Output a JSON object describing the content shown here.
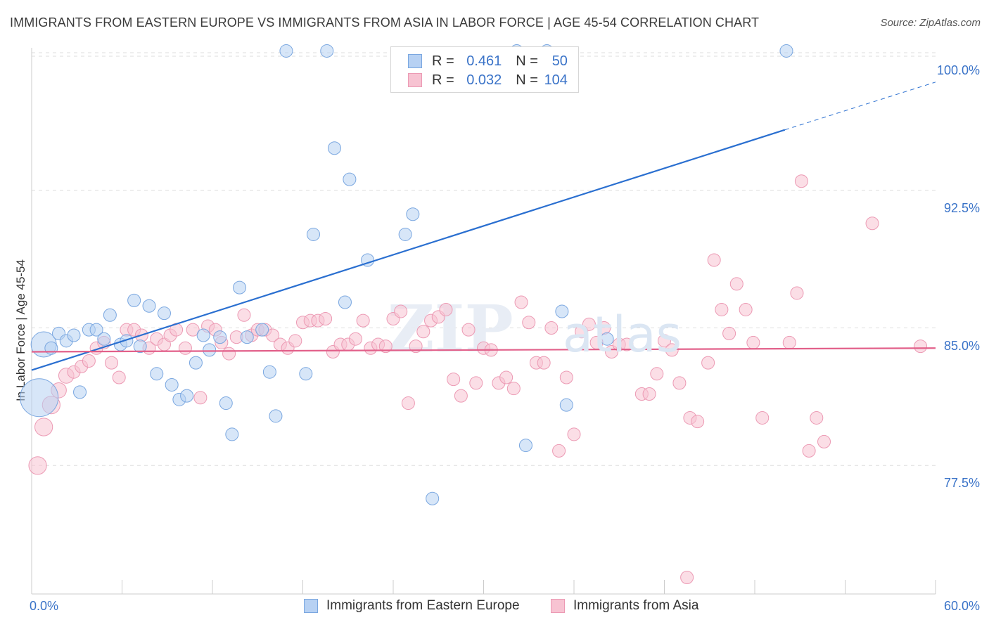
{
  "title": "IMMIGRANTS FROM EASTERN EUROPE VS IMMIGRANTS FROM ASIA IN LABOR FORCE | AGE 45-54 CORRELATION CHART",
  "source": "Source: ZipAtlas.com",
  "watermark": "ZIPatlas",
  "legend_top": {
    "rows": [
      {
        "r_label": "R =",
        "r_value": "0.461",
        "n_label": "N =",
        "n_value": "50"
      },
      {
        "r_label": "R =",
        "r_value": "0.032",
        "n_label": "N =",
        "n_value": "104"
      }
    ]
  },
  "colors": {
    "blue_fill": "#b7d1f3",
    "blue_stroke": "#7aa7e0",
    "blue_line": "#2a6fd0",
    "pink_fill": "#f7c3d2",
    "pink_stroke": "#ec9ab4",
    "pink_line": "#e2608a",
    "axis_label": "#3a73c8",
    "grid": "#dddddd"
  },
  "chart_data": {
    "type": "scatter",
    "title": "IMMIGRANTS FROM EASTERN EUROPE VS IMMIGRANTS FROM ASIA IN LABOR FORCE | AGE 45-54 CORRELATION CHART",
    "xlabel": "",
    "ylabel": "In Labor Force | Age 45-54",
    "xlim": [
      0,
      60
    ],
    "ylim": [
      70.5,
      100.5
    ],
    "x_tick_labels": [
      "0.0%",
      "60.0%"
    ],
    "y_ticks": [
      77.5,
      85.0,
      92.5,
      100.0
    ],
    "y_tick_labels": [
      "77.5%",
      "85.0%",
      "92.5%",
      "100.0%"
    ],
    "grid": true,
    "legend": [
      "Immigrants from Eastern Europe",
      "Immigrants from Asia"
    ],
    "series": [
      {
        "name": "Immigrants from Eastern Europe",
        "color": "blue",
        "trend": {
          "x0": 0,
          "y0": 82.7,
          "x1": 50,
          "y1": 95.8,
          "dashed_to_x": 60,
          "dashed_to_y": 98.4
        },
        "points": [
          [
            0.5,
            81.2,
            3
          ],
          [
            0.8,
            84.1,
            2
          ],
          [
            1.3,
            83.9,
            1
          ],
          [
            1.8,
            84.7,
            1
          ],
          [
            2.3,
            84.3,
            1
          ],
          [
            2.8,
            84.6,
            1
          ],
          [
            3.2,
            81.5,
            1
          ],
          [
            3.8,
            84.9,
            1
          ],
          [
            4.3,
            84.9,
            1
          ],
          [
            4.8,
            84.4,
            1
          ],
          [
            5.2,
            85.7,
            1
          ],
          [
            5.9,
            84.1,
            1
          ],
          [
            6.3,
            84.3,
            1
          ],
          [
            6.8,
            86.5,
            1
          ],
          [
            7.2,
            84.0,
            1
          ],
          [
            7.8,
            86.2,
            1
          ],
          [
            8.3,
            82.5,
            1
          ],
          [
            8.8,
            85.8,
            1
          ],
          [
            9.3,
            81.9,
            1
          ],
          [
            9.8,
            81.1,
            1
          ],
          [
            10.3,
            81.3,
            1
          ],
          [
            10.9,
            83.1,
            1
          ],
          [
            11.4,
            84.6,
            1
          ],
          [
            11.8,
            83.8,
            1
          ],
          [
            12.5,
            84.5,
            1
          ],
          [
            12.9,
            80.9,
            1
          ],
          [
            13.3,
            79.2,
            1
          ],
          [
            13.8,
            87.2,
            1
          ],
          [
            14.3,
            84.5,
            1
          ],
          [
            15.3,
            84.9,
            1
          ],
          [
            15.8,
            82.6,
            1
          ],
          [
            16.2,
            80.2,
            1
          ],
          [
            16.9,
            100.1,
            1
          ],
          [
            18.2,
            82.5,
            1
          ],
          [
            18.7,
            90.1,
            1
          ],
          [
            19.6,
            100.1,
            1
          ],
          [
            20.1,
            94.8,
            1
          ],
          [
            20.8,
            86.4,
            1
          ],
          [
            21.1,
            93.1,
            1
          ],
          [
            22.3,
            88.7,
            1
          ],
          [
            24.8,
            90.1,
            1
          ],
          [
            25.3,
            91.2,
            1
          ],
          [
            26.6,
            75.7,
            1
          ],
          [
            32.2,
            100.1,
            1
          ],
          [
            32.8,
            78.6,
            1
          ],
          [
            34.2,
            100.1,
            1
          ],
          [
            35.2,
            85.9,
            1
          ],
          [
            35.5,
            80.8,
            1
          ],
          [
            38.2,
            84.4,
            1
          ],
          [
            50.1,
            100.1,
            1
          ]
        ]
      },
      {
        "name": "Immigrants from Asia",
        "color": "pink",
        "trend": {
          "x0": 0,
          "y0": 83.7,
          "x1": 60,
          "y1": 83.9
        },
        "points": [
          [
            0.4,
            77.5,
            1.4
          ],
          [
            0.8,
            79.6,
            1.4
          ],
          [
            1.3,
            80.8,
            1.4
          ],
          [
            1.8,
            81.6,
            1.2
          ],
          [
            2.3,
            82.4,
            1.2
          ],
          [
            2.8,
            82.6,
            1
          ],
          [
            3.3,
            82.9,
            1
          ],
          [
            3.8,
            83.2,
            1
          ],
          [
            4.3,
            83.9,
            1
          ],
          [
            4.8,
            84.2,
            1
          ],
          [
            5.3,
            83.1,
            1
          ],
          [
            5.8,
            82.3,
            1
          ],
          [
            6.3,
            84.9,
            1
          ],
          [
            6.8,
            84.9,
            1
          ],
          [
            7.3,
            84.6,
            1
          ],
          [
            7.8,
            83.9,
            1
          ],
          [
            8.3,
            84.4,
            1
          ],
          [
            8.8,
            84.1,
            1
          ],
          [
            9.2,
            84.6,
            1
          ],
          [
            9.6,
            84.9,
            1
          ],
          [
            10.2,
            83.9,
            1
          ],
          [
            10.7,
            84.9,
            1
          ],
          [
            11.2,
            81.2,
            1
          ],
          [
            11.7,
            85.1,
            1
          ],
          [
            12.2,
            84.9,
            1
          ],
          [
            12.6,
            84.2,
            1
          ],
          [
            13.1,
            83.6,
            1
          ],
          [
            13.6,
            84.5,
            1
          ],
          [
            14.1,
            85.7,
            1
          ],
          [
            14.6,
            84.6,
            1
          ],
          [
            15.0,
            84.9,
            1
          ],
          [
            15.5,
            84.9,
            1
          ],
          [
            16.0,
            84.6,
            1
          ],
          [
            16.5,
            84.1,
            1
          ],
          [
            17.0,
            83.9,
            1
          ],
          [
            17.5,
            84.3,
            1
          ],
          [
            18.0,
            85.3,
            1
          ],
          [
            18.5,
            85.4,
            1
          ],
          [
            19.0,
            85.4,
            1
          ],
          [
            19.5,
            85.5,
            1
          ],
          [
            20.0,
            83.7,
            1
          ],
          [
            20.5,
            84.1,
            1
          ],
          [
            21.0,
            84.1,
            1
          ],
          [
            21.5,
            84.4,
            1
          ],
          [
            22.0,
            85.4,
            1
          ],
          [
            22.5,
            83.9,
            1
          ],
          [
            23.0,
            84.1,
            1
          ],
          [
            23.5,
            84.0,
            1
          ],
          [
            24.0,
            85.5,
            1
          ],
          [
            24.5,
            85.9,
            1
          ],
          [
            25.0,
            80.9,
            1
          ],
          [
            25.5,
            84.0,
            1
          ],
          [
            26.0,
            84.8,
            1
          ],
          [
            26.5,
            85.4,
            1
          ],
          [
            27.0,
            85.6,
            1
          ],
          [
            27.5,
            86.0,
            1
          ],
          [
            28.0,
            82.2,
            1
          ],
          [
            28.5,
            81.3,
            1
          ],
          [
            29.0,
            84.9,
            1
          ],
          [
            29.5,
            82.0,
            1
          ],
          [
            30.0,
            83.9,
            1
          ],
          [
            30.5,
            83.8,
            1
          ],
          [
            31.0,
            82.0,
            1
          ],
          [
            31.5,
            82.3,
            1
          ],
          [
            32.0,
            81.7,
            1
          ],
          [
            32.5,
            86.4,
            1
          ],
          [
            33.0,
            85.3,
            1
          ],
          [
            33.5,
            83.1,
            1
          ],
          [
            34.0,
            83.1,
            1
          ],
          [
            34.5,
            85.0,
            1
          ],
          [
            35.0,
            78.3,
            1
          ],
          [
            35.5,
            82.3,
            1
          ],
          [
            36.0,
            79.2,
            1
          ],
          [
            36.5,
            84.8,
            1
          ],
          [
            37.0,
            85.2,
            1
          ],
          [
            37.5,
            84.2,
            1
          ],
          [
            38.0,
            85.0,
            1
          ],
          [
            38.5,
            83.7,
            1
          ],
          [
            39.0,
            84.1,
            1
          ],
          [
            39.5,
            84.1,
            1
          ],
          [
            40.5,
            81.4,
            1
          ],
          [
            41.0,
            81.4,
            1
          ],
          [
            41.5,
            82.5,
            1
          ],
          [
            42.0,
            84.3,
            1
          ],
          [
            42.5,
            83.8,
            1
          ],
          [
            43.0,
            82.0,
            1
          ],
          [
            43.7,
            80.1,
            1
          ],
          [
            44.2,
            79.9,
            1
          ],
          [
            44.9,
            83.1,
            1
          ],
          [
            45.3,
            88.7,
            1
          ],
          [
            45.8,
            86.0,
            1
          ],
          [
            46.3,
            84.7,
            1
          ],
          [
            46.8,
            87.4,
            1
          ],
          [
            47.4,
            86.0,
            1
          ],
          [
            47.9,
            84.2,
            1
          ],
          [
            48.5,
            80.1,
            1
          ],
          [
            50.3,
            84.2,
            1
          ],
          [
            50.8,
            86.9,
            1
          ],
          [
            51.1,
            93.0,
            1
          ],
          [
            51.6,
            78.3,
            1
          ],
          [
            52.1,
            80.1,
            1
          ],
          [
            52.6,
            78.8,
            1
          ],
          [
            55.8,
            90.7,
            1
          ],
          [
            59.0,
            84.0,
            1
          ],
          [
            43.5,
            71.4,
            1
          ]
        ]
      }
    ]
  },
  "bottom_legend": {
    "series1": "Immigrants from Eastern Europe",
    "series2": "Immigrants from Asia"
  }
}
